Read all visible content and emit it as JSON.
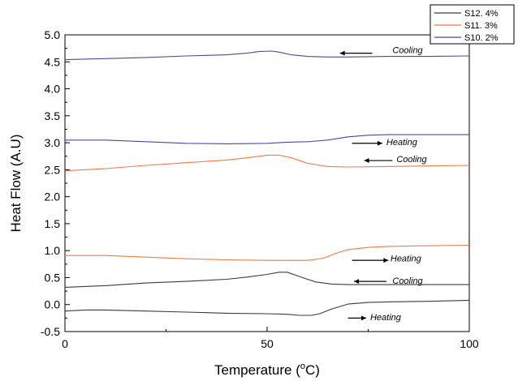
{
  "chart_data": {
    "type": "line",
    "xlabel": "Temperature (",
    "xlabel_sup": "o",
    "xlabel_unit": "C)",
    "ylabel": "Heat Flow (A.U)",
    "xlim": [
      0,
      100
    ],
    "ylim": [
      -0.5,
      5.0
    ],
    "x_ticks": [
      "0",
      "50",
      "100"
    ],
    "y_ticks": [
      "-0.5",
      "0.0",
      "0.5",
      "1.0",
      "1.5",
      "2.0",
      "2.5",
      "3.0",
      "3.5",
      "4.0",
      "4.5",
      "5.0"
    ],
    "legend_position": "top-right",
    "legend": [
      {
        "name": "S12. 4%",
        "color": "#3c3c3c"
      },
      {
        "name": "S11. 3%",
        "color": "#f07a45"
      },
      {
        "name": "S10. 2%",
        "color": "#4a4aa0"
      }
    ],
    "series": [
      {
        "name": "S12. 4%",
        "mode": "Heating",
        "color": "#3c3c3c",
        "x": [
          0,
          5,
          10,
          20,
          30,
          40,
          50,
          55,
          58,
          61,
          63,
          66,
          70,
          75,
          80,
          90,
          100
        ],
        "y": [
          -0.12,
          -0.1,
          -0.1,
          -0.12,
          -0.14,
          -0.16,
          -0.17,
          -0.18,
          -0.2,
          -0.2,
          -0.17,
          -0.08,
          0.01,
          0.04,
          0.05,
          0.06,
          0.08
        ]
      },
      {
        "name": "S12. 4%",
        "mode": "Cooling",
        "color": "#3c3c3c",
        "x": [
          0,
          10,
          20,
          30,
          40,
          45,
          50,
          53,
          55,
          58,
          62,
          66,
          70,
          80,
          90,
          100
        ],
        "y": [
          0.32,
          0.35,
          0.4,
          0.43,
          0.47,
          0.51,
          0.56,
          0.6,
          0.6,
          0.52,
          0.42,
          0.38,
          0.37,
          0.37,
          0.37,
          0.37
        ]
      },
      {
        "name": "S11. 3%",
        "mode": "Heating",
        "color": "#f07a45",
        "x": [
          0,
          10,
          20,
          30,
          40,
          50,
          55,
          60,
          64,
          67,
          70,
          75,
          80,
          90,
          100
        ],
        "y": [
          0.91,
          0.91,
          0.88,
          0.85,
          0.83,
          0.82,
          0.82,
          0.82,
          0.86,
          0.95,
          1.02,
          1.06,
          1.08,
          1.09,
          1.1
        ]
      },
      {
        "name": "S11. 3%",
        "mode": "Cooling",
        "color": "#f07a45",
        "x": [
          0,
          10,
          20,
          30,
          40,
          45,
          50,
          53,
          56,
          60,
          65,
          70,
          80,
          90,
          100
        ],
        "y": [
          2.48,
          2.52,
          2.58,
          2.63,
          2.68,
          2.72,
          2.77,
          2.77,
          2.72,
          2.62,
          2.56,
          2.55,
          2.56,
          2.57,
          2.58
        ]
      },
      {
        "name": "S10. 2%",
        "mode": "Heating",
        "color": "#4a4aa0",
        "x": [
          0,
          10,
          20,
          30,
          40,
          50,
          55,
          60,
          65,
          70,
          75,
          80,
          90,
          100
        ],
        "y": [
          3.05,
          3.05,
          3.02,
          2.99,
          2.98,
          2.99,
          3.01,
          3.02,
          3.05,
          3.11,
          3.14,
          3.15,
          3.15,
          3.15
        ]
      },
      {
        "name": "S10. 2%",
        "mode": "Cooling",
        "color": "#4a4aa0",
        "x": [
          0,
          10,
          20,
          30,
          40,
          45,
          48,
          51,
          53,
          56,
          60,
          65,
          70,
          80,
          90,
          100
        ],
        "y": [
          4.54,
          4.56,
          4.58,
          4.61,
          4.63,
          4.66,
          4.69,
          4.7,
          4.68,
          4.63,
          4.6,
          4.59,
          4.59,
          4.6,
          4.6,
          4.61
        ]
      }
    ],
    "annotations": [
      {
        "text": "Cooling",
        "x": 81,
        "y": 4.72,
        "arrow_from_x": 76,
        "arrow_to_x": 68,
        "arrow_y": 4.66,
        "arrow_dir": "left"
      },
      {
        "text": "Heating",
        "x": 79.5,
        "y": 3.02,
        "arrow_from_x": 71,
        "arrow_to_x": 78.5,
        "arrow_y": 2.99,
        "arrow_dir": "right"
      },
      {
        "text": "Cooling",
        "x": 82,
        "y": 2.7,
        "arrow_from_x": 81,
        "arrow_to_x": 74,
        "arrow_y": 2.67,
        "arrow_dir": "left"
      },
      {
        "text": "Heating",
        "x": 80.5,
        "y": 0.86,
        "arrow_from_x": 71,
        "arrow_to_x": 80,
        "arrow_y": 0.82,
        "arrow_dir": "right"
      },
      {
        "text": "Cooling",
        "x": 81,
        "y": 0.45,
        "arrow_from_x": 79.5,
        "arrow_to_x": 71.5,
        "arrow_y": 0.43,
        "arrow_dir": "left"
      },
      {
        "text": "Heating",
        "x": 75.5,
        "y": -0.23,
        "arrow_from_x": 70,
        "arrow_to_x": 74.5,
        "arrow_y": -0.25,
        "arrow_dir": "right"
      }
    ]
  }
}
